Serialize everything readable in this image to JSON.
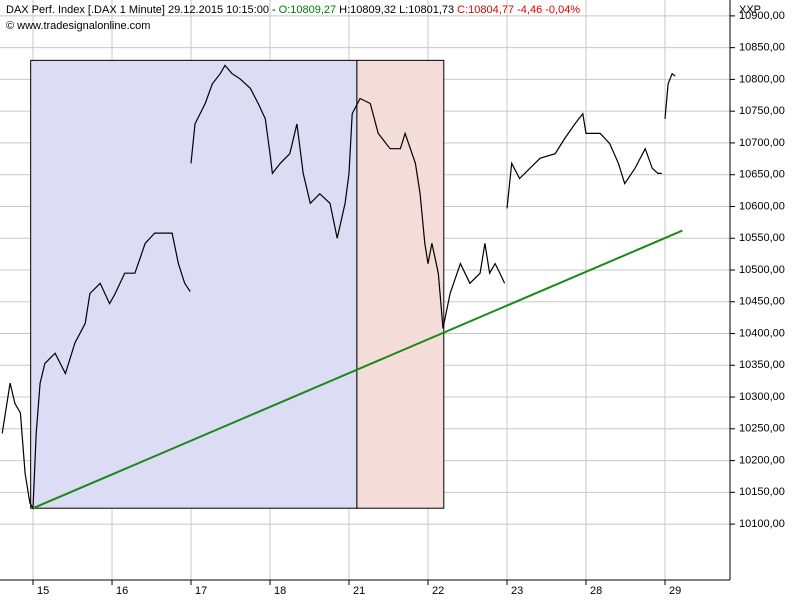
{
  "chart_data": {
    "type": "line",
    "title_parts": [
      {
        "text": "DAX Perf. Index [.DAX  1 Minute] 29.12.2015 10:15:00 -",
        "color": "#000000"
      },
      {
        "text": "O:10809,27",
        "color": "#008000"
      },
      {
        "text": "H:10809,32 L:10801,73",
        "color": "#000000"
      },
      {
        "text": "C:10804,77 -4,46 -0,04%",
        "color": "#e00000"
      }
    ],
    "subtitle": "© www.tradesignalonline.com",
    "corner_label": "XXP",
    "color": "#000000",
    "x": [
      -0.39,
      -0.29,
      -0.23,
      -0.16,
      -0.1,
      -0.04,
      0,
      0.04,
      0.09,
      0.15,
      0.28,
      0.41,
      0.53,
      0.66,
      0.72,
      0.85,
      0.97,
      1.04,
      1.16,
      1.29,
      1.42,
      1.54,
      1.67,
      1.76,
      1.84,
      1.92,
      1.99,
      1.995,
      2.0,
      2.05,
      2.18,
      2.27,
      2.37,
      2.43,
      2.52,
      2.62,
      2.75,
      2.85,
      2.94,
      3.0,
      3.03,
      3.13,
      3.25,
      3.34,
      3.42,
      3.51,
      3.63,
      3.76,
      3.85,
      3.95,
      4.0,
      4.04,
      4.14,
      4.27,
      4.37,
      4.52,
      4.65,
      4.71,
      4.84,
      4.9,
      4.96,
      5.0,
      5.05,
      5.13,
      5.19,
      5.28,
      5.41,
      5.53,
      5.66,
      5.72,
      5.78,
      5.85,
      5.91,
      5.97,
      5.985,
      6.0,
      6.06,
      6.16,
      6.29,
      6.42,
      6.61,
      6.73,
      6.86,
      6.96,
      7.0,
      7.05,
      7.18,
      7.3,
      7.41,
      7.49,
      7.62,
      7.75,
      7.84,
      7.91,
      7.96,
      7.98,
      8.0,
      8.04,
      8.09,
      8.13
    ],
    "values": [
      10243,
      10322,
      10290,
      10275,
      10180,
      10133,
      10125,
      10243,
      10322,
      10353,
      10369,
      10337,
      10385,
      10416,
      10463,
      10479,
      10447,
      10463,
      10495,
      10495,
      10542,
      10558,
      10558,
      10558,
      10510,
      10479,
      10466,
      null,
      10668,
      10730,
      10762,
      10793,
      10809,
      10822,
      10809,
      10801,
      10786,
      10762,
      10738,
      10683,
      10652,
      10668,
      10683,
      10730,
      10652,
      10605,
      10620,
      10605,
      10550,
      10605,
      10652,
      10746,
      10770,
      10762,
      10715,
      10691,
      10691,
      10715,
      10668,
      10620,
      10542,
      10510,
      10542,
      10495,
      10408,
      10463,
      10510,
      10479,
      10495,
      10542,
      10495,
      10510,
      10495,
      10479,
      null,
      10597,
      10668,
      10644,
      10660,
      10676,
      10683,
      10707,
      10730,
      10746,
      10715,
      10715,
      10715,
      10699,
      10668,
      10636,
      10660,
      10691,
      10660,
      10652,
      10652,
      null,
      10738,
      10793,
      10809,
      10805
    ],
    "xlim": [
      -0.418,
      8.823
    ],
    "ylim": [
      10012,
      10925
    ],
    "xticks": [
      {
        "value": 0,
        "label": "15"
      },
      {
        "value": 1,
        "label": "16"
      },
      {
        "value": 2,
        "label": "17"
      },
      {
        "value": 3,
        "label": "18"
      },
      {
        "value": 4,
        "label": "21"
      },
      {
        "value": 5,
        "label": "22"
      },
      {
        "value": 6,
        "label": "23"
      },
      {
        "value": 7,
        "label": "28"
      },
      {
        "value": 8,
        "label": "29"
      }
    ],
    "yticks": [
      {
        "value": 10100,
        "label": "10100,00"
      },
      {
        "value": 10150,
        "label": "10150,00"
      },
      {
        "value": 10200,
        "label": "10200,00"
      },
      {
        "value": 10250,
        "label": "10250,00"
      },
      {
        "value": 10300,
        "label": "10300,00"
      },
      {
        "value": 10350,
        "label": "10350,00"
      },
      {
        "value": 10400,
        "label": "10400,00"
      },
      {
        "value": 10450,
        "label": "10450,00"
      },
      {
        "value": 10500,
        "label": "10500,00"
      },
      {
        "value": 10550,
        "label": "10550,00"
      },
      {
        "value": 10600,
        "label": "10600,00"
      },
      {
        "value": 10650,
        "label": "10650,00"
      },
      {
        "value": 10700,
        "label": "10700,00"
      },
      {
        "value": 10750,
        "label": "10750,00"
      },
      {
        "value": 10800,
        "label": "10800,00"
      },
      {
        "value": 10850,
        "label": "10850,00"
      },
      {
        "value": 10900,
        "label": "10900,00"
      }
    ],
    "grid": true,
    "shapes": [
      {
        "type": "rect",
        "x": [
          -0.03,
          4.1
        ],
        "y": [
          10125,
          10830
        ],
        "color": "#dcdcf4"
      },
      {
        "type": "rect",
        "x": [
          4.1,
          5.2
        ],
        "y": [
          10125,
          10830
        ],
        "color": "#f4dcd8"
      },
      {
        "type": "segment",
        "x": [
          0,
          8.22
        ],
        "y": [
          10125,
          10562
        ],
        "color": "#1a8a1a"
      }
    ]
  }
}
